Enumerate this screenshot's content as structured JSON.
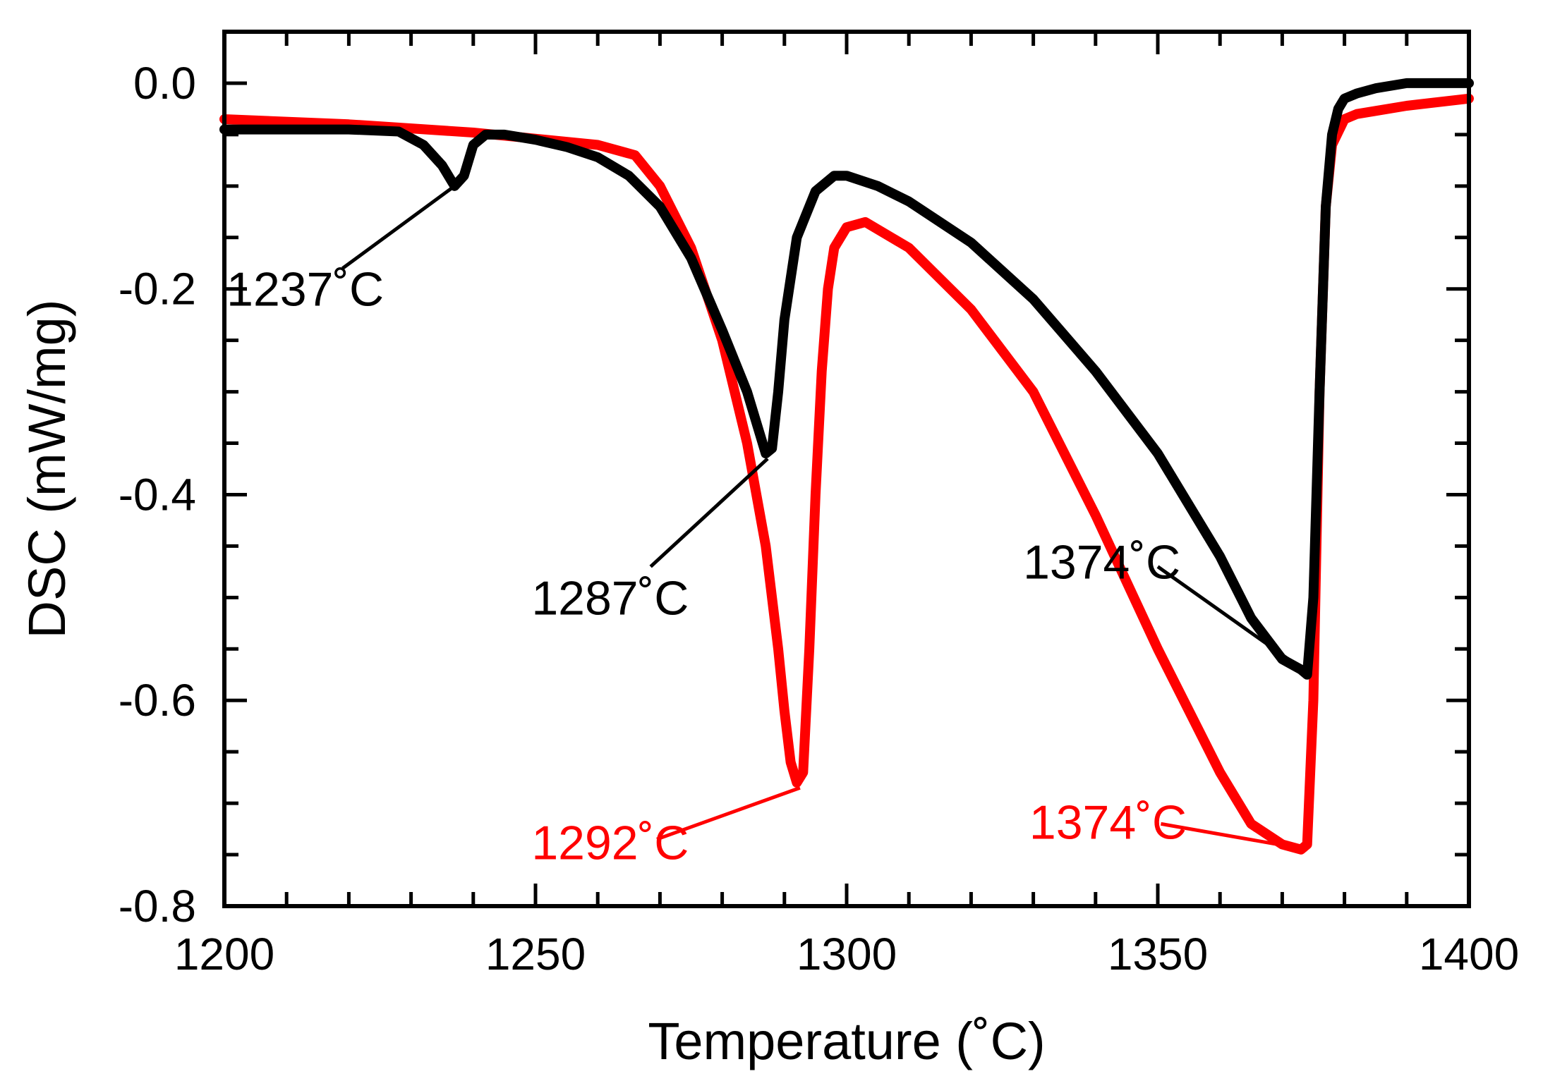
{
  "chart_data": {
    "type": "line",
    "title": "",
    "xlabel": "Temperature (˚C)",
    "ylabel": "DSC (mW/mg)",
    "xlim": [
      1200,
      1400
    ],
    "ylim": [
      -0.8,
      0.05
    ],
    "x_major_ticks": [
      1200,
      1250,
      1300,
      1350,
      1400
    ],
    "x_tick_labels": [
      "1200",
      "1250",
      "1300",
      "1350",
      "1400"
    ],
    "x_minor_ticks": [
      1210,
      1220,
      1230,
      1240,
      1260,
      1270,
      1280,
      1290,
      1310,
      1320,
      1330,
      1340,
      1360,
      1370,
      1380,
      1390
    ],
    "y_major_ticks": [
      0.0,
      -0.2,
      -0.4,
      -0.6,
      -0.8
    ],
    "y_tick_labels": [
      "0.0",
      "-0.2",
      "-0.4",
      "-0.6",
      "-0.8"
    ],
    "y_minor_ticks": [
      -0.05,
      -0.1,
      -0.15,
      -0.25,
      -0.3,
      -0.35,
      -0.45,
      -0.5,
      -0.55,
      -0.65,
      -0.7,
      -0.75
    ],
    "grid": false,
    "legend": "none",
    "series": [
      {
        "name": "black",
        "color": "#000000",
        "x": [
          1200,
          1210,
          1220,
          1228,
          1232,
          1235,
          1237,
          1238.5,
          1240,
          1242,
          1245,
          1250,
          1255,
          1260,
          1265,
          1270,
          1275,
          1280,
          1284,
          1286,
          1287,
          1288,
          1289,
          1290,
          1292,
          1295,
          1298,
          1300,
          1305,
          1310,
          1320,
          1330,
          1340,
          1350,
          1360,
          1365,
          1370,
          1373,
          1374,
          1375,
          1376,
          1377,
          1378,
          1379,
          1380,
          1382,
          1385,
          1390,
          1395,
          1400
        ],
        "y": [
          -0.045,
          -0.045,
          -0.045,
          -0.047,
          -0.06,
          -0.08,
          -0.1,
          -0.09,
          -0.06,
          -0.05,
          -0.05,
          -0.055,
          -0.062,
          -0.072,
          -0.09,
          -0.12,
          -0.17,
          -0.24,
          -0.3,
          -0.34,
          -0.36,
          -0.355,
          -0.3,
          -0.23,
          -0.15,
          -0.105,
          -0.09,
          -0.09,
          -0.1,
          -0.115,
          -0.155,
          -0.21,
          -0.28,
          -0.36,
          -0.46,
          -0.52,
          -0.56,
          -0.57,
          -0.575,
          -0.5,
          -0.3,
          -0.12,
          -0.05,
          -0.025,
          -0.015,
          -0.01,
          -0.005,
          0.0,
          0.0,
          0.0
        ]
      },
      {
        "name": "red",
        "color": "#ff0000",
        "x": [
          1200,
          1220,
          1240,
          1260,
          1266,
          1270,
          1275,
          1280,
          1284,
          1287,
          1289,
          1290,
          1291,
          1292,
          1293,
          1294,
          1295,
          1296,
          1297,
          1298,
          1300,
          1303,
          1310,
          1320,
          1330,
          1340,
          1350,
          1360,
          1365,
          1370,
          1373,
          1374,
          1375,
          1376,
          1377,
          1378,
          1380,
          1382,
          1385,
          1390,
          1400
        ],
        "y": [
          -0.035,
          -0.04,
          -0.048,
          -0.06,
          -0.07,
          -0.1,
          -0.16,
          -0.25,
          -0.35,
          -0.45,
          -0.55,
          -0.61,
          -0.66,
          -0.68,
          -0.67,
          -0.55,
          -0.4,
          -0.28,
          -0.2,
          -0.16,
          -0.14,
          -0.135,
          -0.16,
          -0.22,
          -0.3,
          -0.42,
          -0.55,
          -0.67,
          -0.72,
          -0.74,
          -0.745,
          -0.74,
          -0.6,
          -0.3,
          -0.12,
          -0.06,
          -0.035,
          -0.03,
          -0.027,
          -0.022,
          -0.015
        ]
      }
    ],
    "annotations": [
      {
        "text": "1237˚C",
        "color": "#000000",
        "label_x": 1213,
        "label_y": -0.2,
        "anchor": "middle",
        "line_from_x": 1219,
        "line_from_y": -0.18,
        "point_x": 1237,
        "point_y": -0.1
      },
      {
        "text": "1287˚C",
        "color": "#000000",
        "label_x": 1262,
        "label_y": -0.5,
        "anchor": "middle",
        "line_from_x": 1268.5,
        "line_from_y": -0.47,
        "point_x": 1287.3,
        "point_y": -0.365
      },
      {
        "text": "1374˚C",
        "color": "#000000",
        "label_x": 1341,
        "label_y": -0.465,
        "anchor": "middle",
        "line_from_x": 1350,
        "line_from_y": -0.47,
        "point_x": 1374.5,
        "point_y": -0.575
      },
      {
        "text": "1292˚C",
        "color": "#ff0000",
        "label_x": 1262,
        "label_y": -0.738,
        "anchor": "middle",
        "line_from_x": 1269.5,
        "line_from_y": -0.735,
        "point_x": 1292.5,
        "point_y": -0.685
      },
      {
        "text": "1374˚C",
        "color": "#ff0000",
        "label_x": 1342,
        "label_y": -0.718,
        "anchor": "middle",
        "line_from_x": 1350.5,
        "line_from_y": -0.72,
        "point_x": 1374,
        "point_y": -0.745
      }
    ]
  }
}
